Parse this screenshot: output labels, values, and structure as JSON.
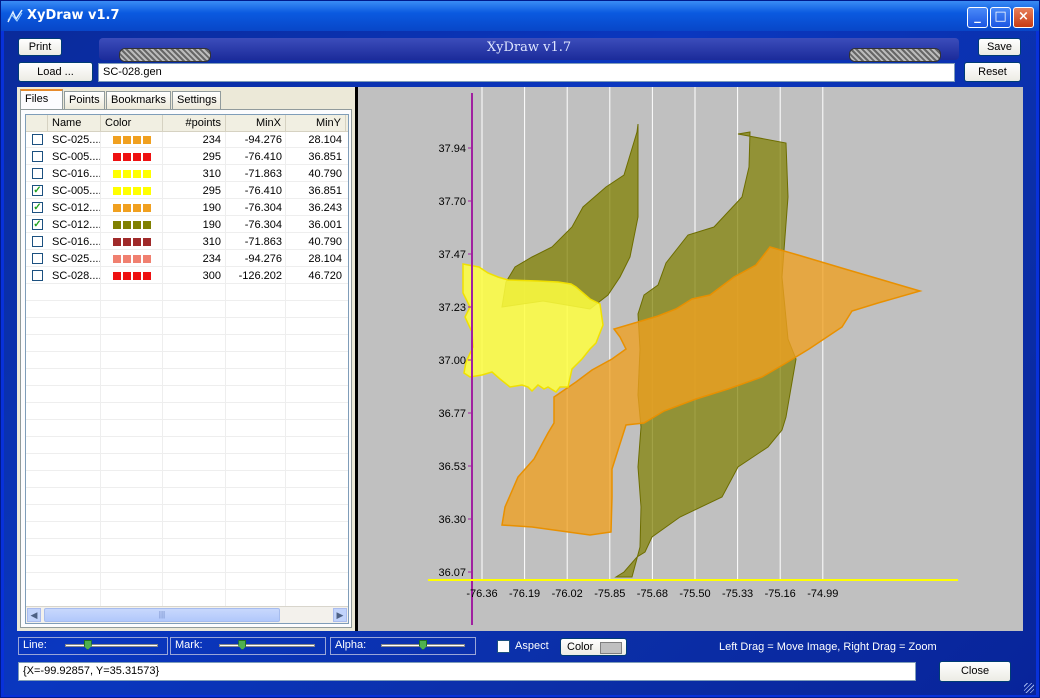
{
  "window": {
    "title": "XyDraw v1.7",
    "app_icon": "chart-line-icon"
  },
  "titlebar_buttons": {
    "minimize": "_",
    "maximize": "□",
    "close": "×"
  },
  "toolbar": {
    "print_label": "Print",
    "load_label": "Load ...",
    "save_label": "Save",
    "reset_label": "Reset",
    "file_path": "SC-028.gen",
    "banner_title": "XyDraw v1.7"
  },
  "tabs": [
    {
      "label": "Files",
      "active": true
    },
    {
      "label": "Points",
      "active": false
    },
    {
      "label": "Bookmarks",
      "active": false
    },
    {
      "label": "Settings",
      "active": false
    }
  ],
  "file_list": {
    "columns": [
      "Name",
      "Color",
      "#points",
      "MinX",
      "MinY"
    ],
    "rows": [
      {
        "checked": false,
        "name": "SC-025....",
        "color": "#f0a020",
        "points": "234",
        "minx": "-94.276",
        "miny": "28.104"
      },
      {
        "checked": false,
        "name": "SC-005....",
        "color": "#ee1111",
        "points": "295",
        "minx": "-76.410",
        "miny": "36.851"
      },
      {
        "checked": false,
        "name": "SC-016....",
        "color": "#ffff00",
        "points": "310",
        "minx": "-71.863",
        "miny": "40.790"
      },
      {
        "checked": true,
        "name": "SC-005....",
        "color": "#ffff00",
        "points": "295",
        "minx": "-76.410",
        "miny": "36.851"
      },
      {
        "checked": true,
        "name": "SC-012....",
        "color": "#f0a020",
        "points": "190",
        "minx": "-76.304",
        "miny": "36.243"
      },
      {
        "checked": true,
        "name": "SC-012....",
        "color": "#808000",
        "points": "190",
        "minx": "-76.304",
        "miny": "36.001"
      },
      {
        "checked": false,
        "name": "SC-016....",
        "color": "#a02a2a",
        "points": "310",
        "minx": "-71.863",
        "miny": "40.790"
      },
      {
        "checked": false,
        "name": "SC-025....",
        "color": "#f08070",
        "points": "234",
        "minx": "-94.276",
        "miny": "28.104"
      },
      {
        "checked": false,
        "name": "SC-028....",
        "color": "#ee1111",
        "points": "300",
        "minx": "-126.202",
        "miny": "46.720"
      }
    ],
    "scroll_thumb_glyph": "|||"
  },
  "plot": {
    "background": "#c0c0c0",
    "y_ticks": [
      "37.94",
      "37.70",
      "37.47",
      "37.23",
      "37.00",
      "36.77",
      "36.53",
      "36.30",
      "36.07"
    ],
    "x_ticks": [
      "-76.36",
      "-76.19",
      "-76.02",
      "-75.85",
      "-75.68",
      "-75.50",
      "-75.33",
      "-75.16",
      "-74.99"
    ],
    "y_axis_color": "#a020a0",
    "x_axis_color": "#ffff00",
    "shapes": [
      {
        "name": "olive-shape-upper-left",
        "fill": "#808000"
      },
      {
        "name": "olive-shape-large-strip",
        "fill": "#808000"
      },
      {
        "name": "orange-shape",
        "fill": "#f0a020"
      },
      {
        "name": "yellow-shape",
        "fill": "#ffff40"
      }
    ]
  },
  "bottom": {
    "line_label": "Line:",
    "mark_label": "Mark:",
    "alpha_label": "Alpha:",
    "aspect_label": "Aspect",
    "color_label": "Color",
    "help_text": "Left Drag = Move Image,   Right Drag = Zoom",
    "coords": "{X=-99.92857, Y=35.31573}",
    "close_label": "Close",
    "line_level": 0.22,
    "mark_level": 0.22,
    "alpha_level": 0.5
  }
}
